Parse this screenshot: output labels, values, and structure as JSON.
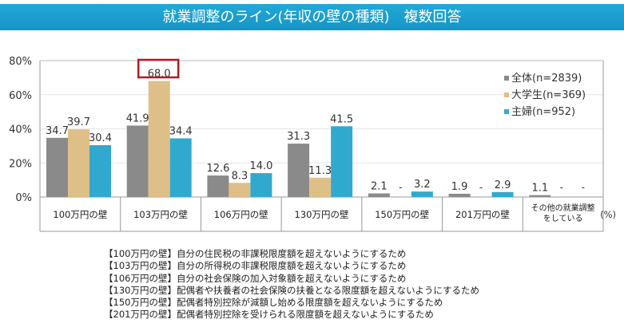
{
  "header": {
    "title": "就業調整のライン(年収の壁の種類)　複数回答"
  },
  "chart_data": {
    "type": "bar",
    "title": "就業調整のライン(年収の壁の種類)　複数回答",
    "unit": "(%)",
    "categories": [
      "100万円の壁",
      "103万円の壁",
      "106万円の壁",
      "130万円の壁",
      "150万円の壁",
      "201万円の壁",
      "その他の就業調整をしている"
    ],
    "category_lines": [
      [
        "100万円の壁"
      ],
      [
        "103万円の壁"
      ],
      [
        "106万円の壁"
      ],
      [
        "130万円の壁"
      ],
      [
        "150万円の壁"
      ],
      [
        "201万円の壁"
      ],
      [
        "その他の就業調整",
        "をしている"
      ]
    ],
    "series": [
      {
        "name": "全体(n=2839)",
        "color": "#8a8a8a",
        "values": [
          34.7,
          41.9,
          12.6,
          31.3,
          2.1,
          1.9,
          1.1
        ]
      },
      {
        "name": "大学生(n=369)",
        "color": "#dfbf88",
        "values": [
          39.7,
          68.0,
          8.3,
          11.3,
          null,
          null,
          null
        ]
      },
      {
        "name": "主婦(n=952)",
        "color": "#31a9cf",
        "values": [
          30.4,
          34.4,
          14.0,
          41.5,
          3.2,
          2.9,
          null
        ]
      }
    ],
    "missing_label": "-",
    "ylim": [
      0,
      80
    ],
    "yticks": [
      "0%",
      "20%",
      "40%",
      "60%",
      "80%"
    ],
    "grid": true,
    "legend": "top-right",
    "highlight": {
      "category": "103万円の壁",
      "series": "大学生(n=369)",
      "value": "68.0",
      "color": "#b01c22"
    }
  },
  "notes": [
    "【100万円の壁】自分の住民税の非課税限度額を超えないようにするため",
    "【103万円の壁】自分の所得税の非課税限度額を超えないようにするため",
    "【106万円の壁】自分の社会保険の加入対象額を超えないようにするため",
    "【130万円の壁】配偶者や扶養者の社会保険の扶養となる限度額を超えないようにするため",
    "【150万円の壁】配偶者特別控除が減額し始める限度額を超えないようにするため",
    "【201万円の壁】配偶者特別控除を受けられる限度額を超えないようにするため"
  ]
}
